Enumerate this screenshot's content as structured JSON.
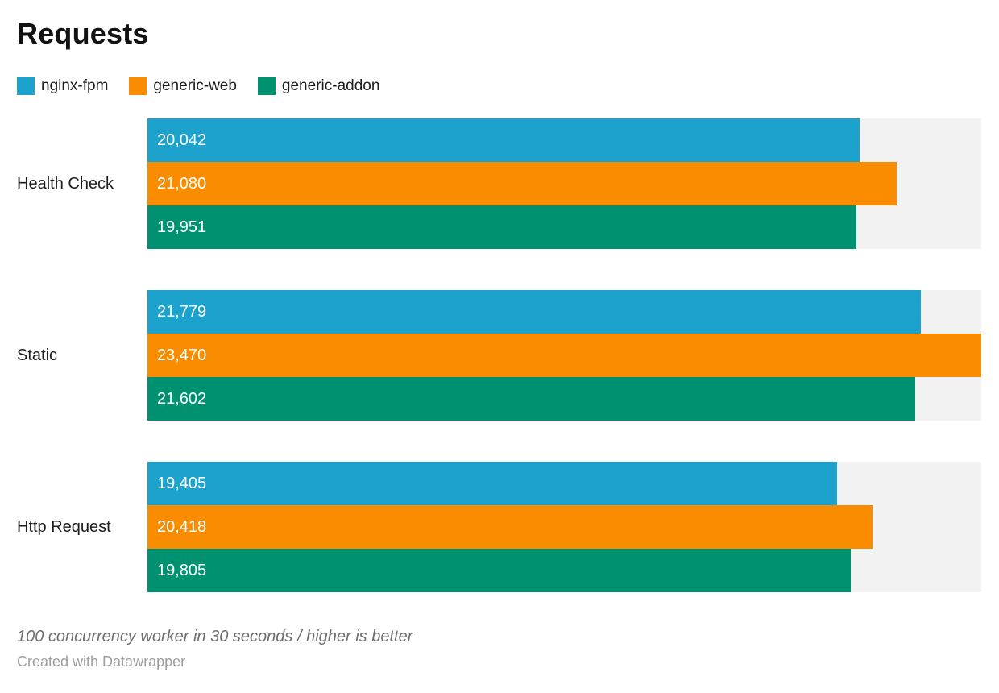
{
  "header": {
    "title": "Requests"
  },
  "footer": {
    "note": "100 concurrency worker in 30 seconds / higher is better",
    "byline": "Created with Datawrapper"
  },
  "colors": {
    "nginx_fpm": "#1ca2cc",
    "generic_web": "#f98c00",
    "generic_addon": "#009170",
    "track": "#f2f2f2"
  },
  "chart_data": {
    "type": "bar",
    "orientation": "horizontal",
    "title": "Requests",
    "categories": [
      "Health Check",
      "Static",
      "Http Request"
    ],
    "series": [
      {
        "name": "nginx-fpm",
        "color": "#1ca2cc",
        "values": [
          20042,
          21779,
          19405
        ],
        "labels": [
          "20,042",
          "21,779",
          "19,405"
        ]
      },
      {
        "name": "generic-web",
        "color": "#f98c00",
        "values": [
          21080,
          23470,
          20418
        ],
        "labels": [
          "21,080",
          "23,470",
          "20,418"
        ]
      },
      {
        "name": "generic-addon",
        "color": "#009170",
        "values": [
          19951,
          21602,
          19805
        ],
        "labels": [
          "19,951",
          "21,602",
          "19,805"
        ]
      }
    ],
    "xlim": [
      0,
      23470
    ],
    "value_labels_inside_bars": true,
    "background_track": true,
    "legend_position": "top-left",
    "grid": false,
    "note": "100 concurrency worker in 30 seconds / higher is better"
  }
}
